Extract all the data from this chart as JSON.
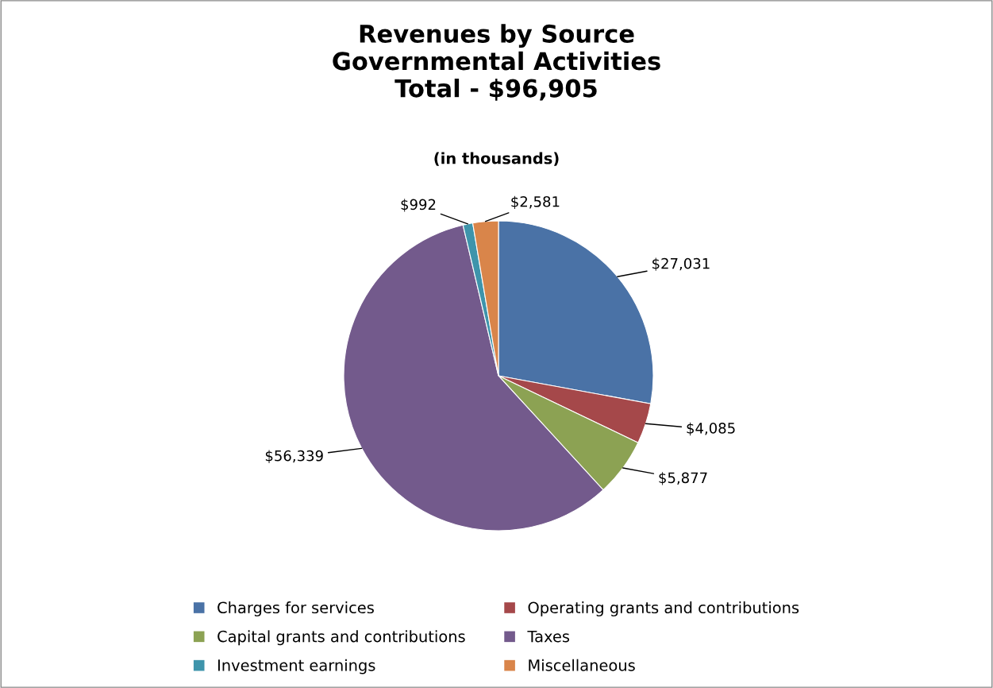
{
  "chart_data": {
    "type": "pie",
    "title": "Revenues by Source\nGovernmental Activities\nTotal - $96,905",
    "subtitle": "(in thousands)",
    "categories": [
      "Charges for services",
      "Operating grants and contributions",
      "Capital grants and contributions",
      "Taxes",
      "Investment earnings",
      "Miscellaneous"
    ],
    "values": [
      27031,
      4085,
      5877,
      56339,
      992,
      2581
    ],
    "colors": [
      "#4a72a6",
      "#a5484a",
      "#8ca253",
      "#735a8c",
      "#3e94ab",
      "#d9854a"
    ],
    "value_labels": [
      "$27,031",
      "$4,085",
      "$5,877",
      "$56,339",
      "$992",
      "$2,581"
    ],
    "legend": "bottom"
  }
}
